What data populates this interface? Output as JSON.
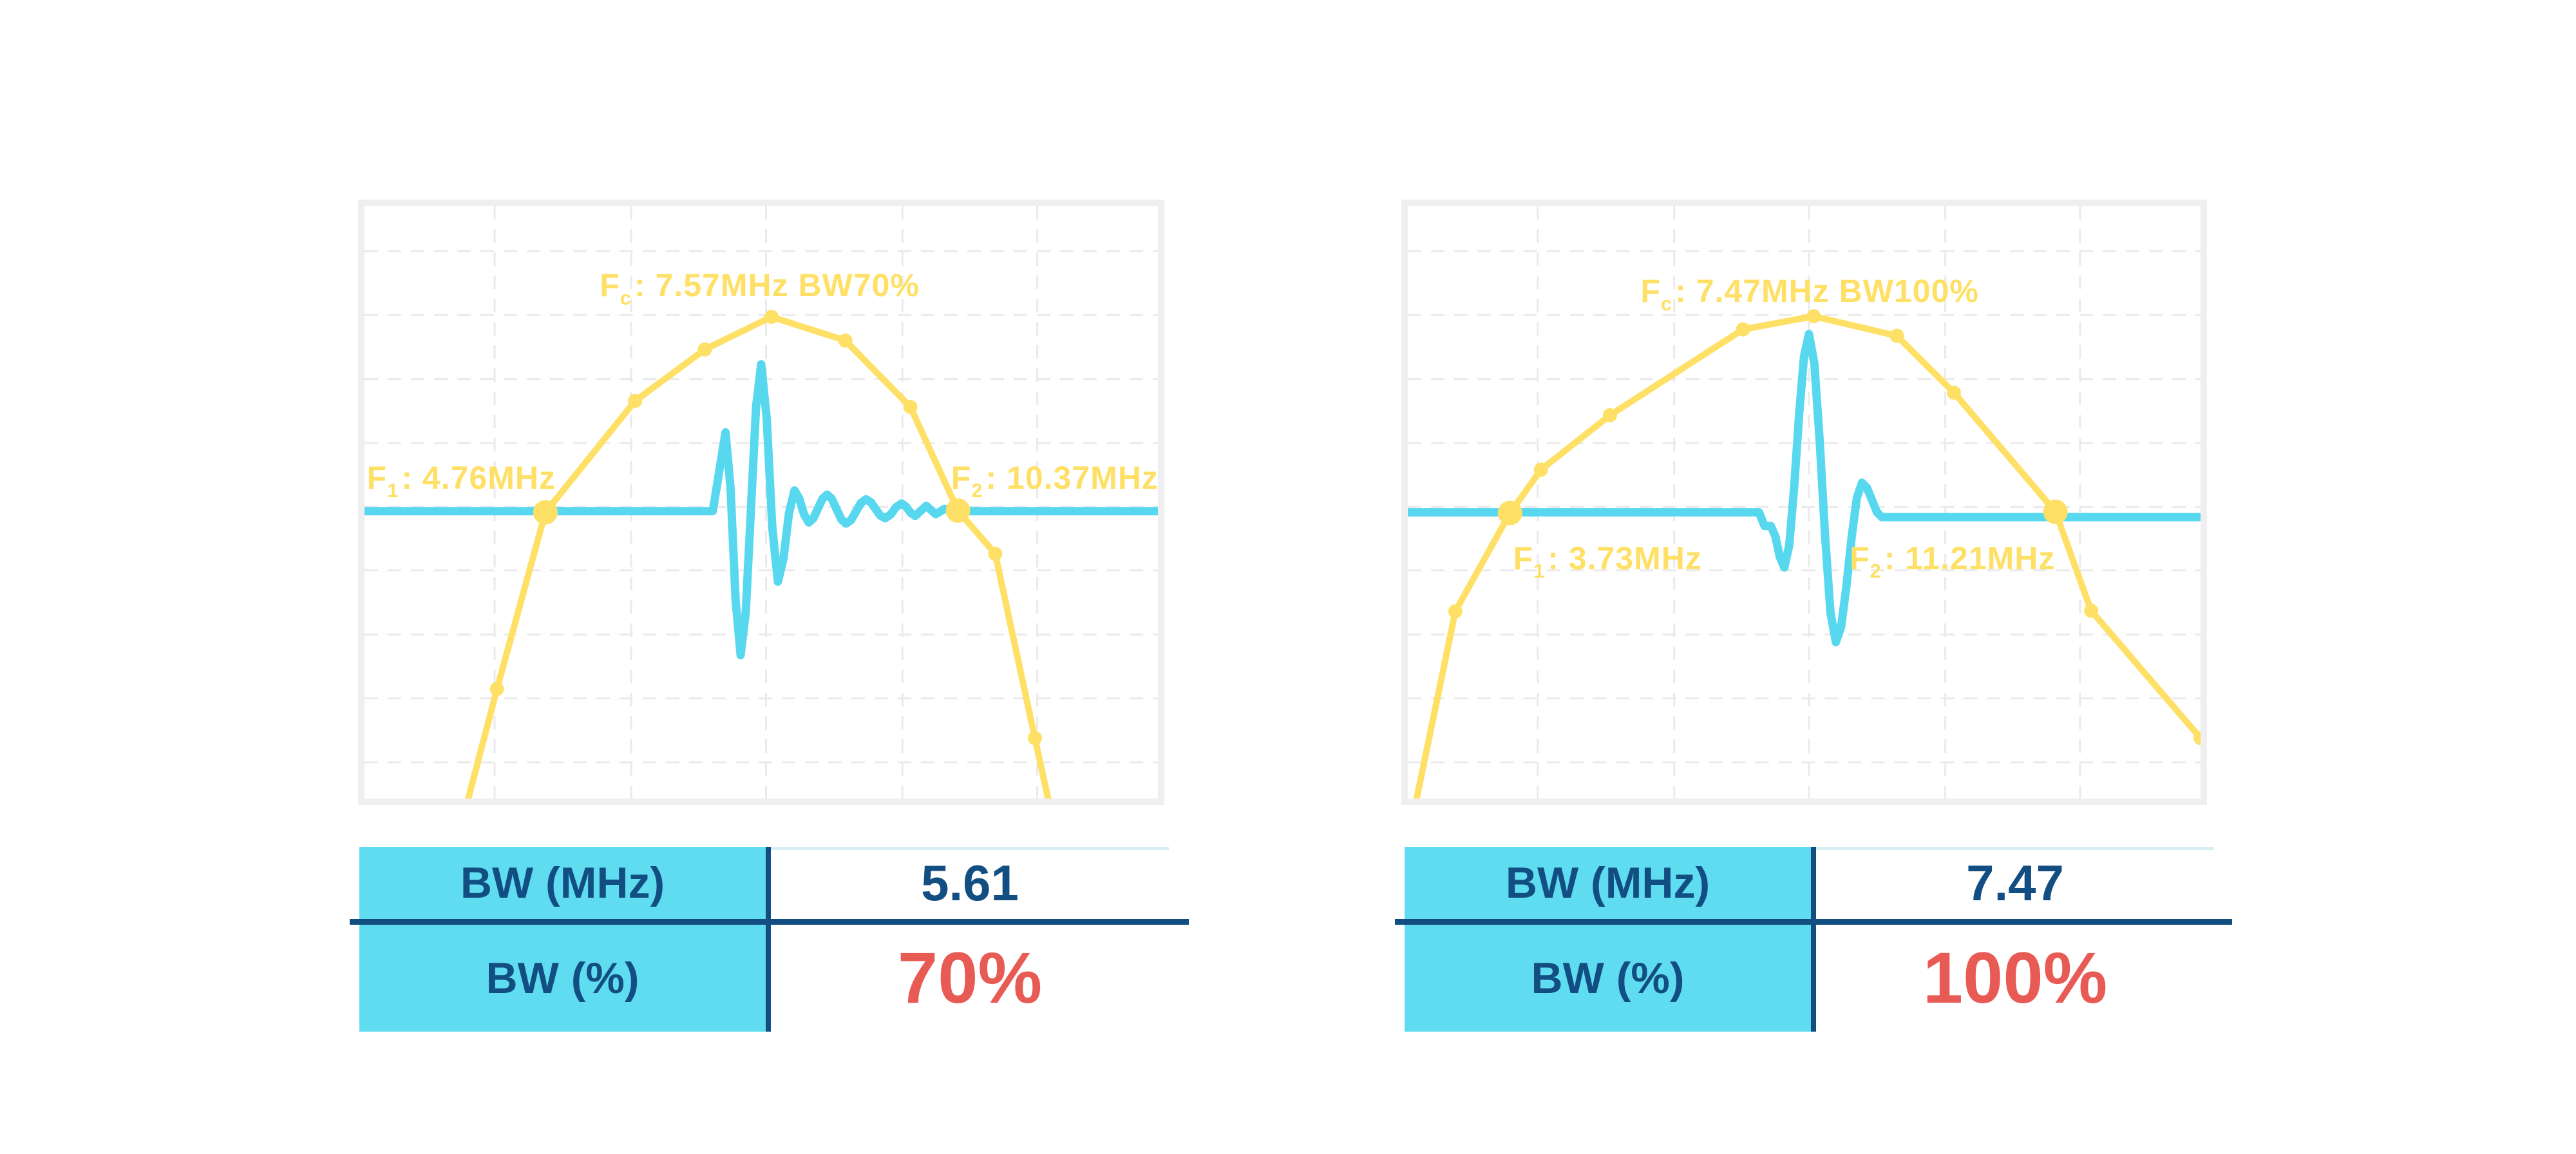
{
  "colors": {
    "yellow": "#FFE066",
    "cyan": "#58D8EF",
    "table_header_bg": "#5FDCF0",
    "navy": "#134E82",
    "red": "#E85B54",
    "frame_border": "#EFEFEF",
    "grid": "#EAEAEA",
    "light_rule": "#D7EEF4",
    "background": "#FFFFFF"
  },
  "chart_data": [
    {
      "type": "line",
      "description": "Pulse waveform (time) overlaid on frequency spectrum, 70% bandwidth transducer",
      "fc_mhz": 7.57,
      "f1_mhz": 4.76,
      "f2_mhz": 10.37,
      "bw_mhz": 5.61,
      "bw_percent": 70,
      "axes": "unlabeled",
      "grid_on": true,
      "annotations": {
        "fc": {
          "prefix": "F",
          "sub": "c",
          "rest": ": 7.57MHz BW70%",
          "x": 49.8,
          "y": 13.4
        },
        "f1": {
          "prefix": "F",
          "sub": "1",
          "rest": ": 4.76MHz",
          "x": 12.2,
          "y": 45.9
        },
        "f2": {
          "prefix": "F",
          "sub": "2",
          "rest": ": 10.37MHz",
          "x": 87.0,
          "y": 45.9
        }
      },
      "baseline_y": 0.515,
      "spectrum": [
        [
          0.123,
          1.04
        ],
        [
          0.167,
          0.815
        ],
        [
          0.228,
          0.517
        ],
        [
          0.341,
          0.329
        ],
        [
          0.429,
          0.242
        ],
        [
          0.513,
          0.187
        ],
        [
          0.606,
          0.227
        ],
        [
          0.688,
          0.339
        ],
        [
          0.748,
          0.514
        ],
        [
          0.795,
          0.587
        ],
        [
          0.845,
          0.898
        ],
        [
          0.868,
          1.04
        ]
      ],
      "markers_small": [
        [
          0.167,
          0.815
        ],
        [
          0.341,
          0.329
        ],
        [
          0.429,
          0.242
        ],
        [
          0.513,
          0.187
        ],
        [
          0.606,
          0.227
        ],
        [
          0.688,
          0.339
        ],
        [
          0.795,
          0.587
        ],
        [
          0.845,
          0.898
        ]
      ],
      "markers_large": [
        [
          0.228,
          0.517
        ],
        [
          0.748,
          0.514
        ]
      ],
      "pulse": [
        [
          0,
          0.515
        ],
        [
          0.439,
          0.515
        ],
        [
          0.455,
          0.382
        ],
        [
          0.474,
          0.758
        ],
        [
          0.5,
          0.267
        ],
        [
          0.521,
          0.634
        ],
        [
          0.542,
          0.48
        ],
        [
          0.56,
          0.534
        ],
        [
          0.583,
          0.487
        ],
        [
          0.607,
          0.536
        ],
        [
          0.632,
          0.495
        ],
        [
          0.656,
          0.527
        ],
        [
          0.677,
          0.502
        ],
        [
          0.694,
          0.523
        ],
        [
          0.708,
          0.506
        ],
        [
          0.72,
          0.52
        ],
        [
          0.731,
          0.511
        ],
        [
          0.745,
          0.515
        ],
        [
          1,
          0.515
        ]
      ],
      "grid": {
        "vx": [
          0.164,
          0.336,
          0.506,
          0.678,
          0.848
        ],
        "hy": [
          0.076,
          0.184,
          0.292,
          0.4,
          0.508,
          0.615,
          0.723,
          0.831,
          0.939
        ]
      },
      "table": {
        "rows": [
          {
            "label": "BW (MHz)",
            "value": "5.61",
            "emphasis": false
          },
          {
            "label": "BW (%)",
            "value": "70%",
            "emphasis": true
          }
        ]
      }
    },
    {
      "type": "line",
      "description": "Pulse waveform (time) overlaid on frequency spectrum, 100% bandwidth transducer",
      "fc_mhz": 7.47,
      "f1_mhz": 3.73,
      "f2_mhz": 11.21,
      "bw_mhz": 7.47,
      "bw_percent": 100,
      "axes": "unlabeled",
      "grid_on": true,
      "annotations": {
        "fc": {
          "prefix": "F",
          "sub": "c",
          "rest": ": 7.47MHz BW100%",
          "x": 50.7,
          "y": 14.3
        },
        "f1": {
          "prefix": "F",
          "sub": "1",
          "rest": ": 3.73MHz",
          "x": 25.2,
          "y": 59.5
        },
        "f2": {
          "prefix": "F",
          "sub": "2",
          "rest": ": 11.21MHz",
          "x": 68.7,
          "y": 59.5
        }
      },
      "baseline_y": 0.517,
      "spectrum": [
        [
          0.005,
          1.04
        ],
        [
          0.06,
          0.684
        ],
        [
          0.129,
          0.518
        ],
        [
          0.168,
          0.445
        ],
        [
          0.255,
          0.353
        ],
        [
          0.423,
          0.208
        ],
        [
          0.512,
          0.186
        ],
        [
          0.617,
          0.219
        ],
        [
          0.689,
          0.315
        ],
        [
          0.817,
          0.516
        ],
        [
          0.862,
          0.683
        ],
        [
          1.0,
          0.898
        ]
      ],
      "markers_small": [
        [
          0.06,
          0.684
        ],
        [
          0.168,
          0.445
        ],
        [
          0.255,
          0.353
        ],
        [
          0.423,
          0.208
        ],
        [
          0.512,
          0.186
        ],
        [
          0.617,
          0.219
        ],
        [
          0.689,
          0.315
        ],
        [
          0.862,
          0.683
        ],
        [
          1.0,
          0.898
        ]
      ],
      "markers_large": [
        [
          0.129,
          0.518
        ],
        [
          0.817,
          0.516
        ]
      ],
      "pulse": [
        [
          0,
          0.517
        ],
        [
          0.443,
          0.517
        ],
        [
          0.45,
          0.54
        ],
        [
          0.458,
          0.54
        ],
        [
          0.475,
          0.61
        ],
        [
          0.506,
          0.216
        ],
        [
          0.54,
          0.736
        ],
        [
          0.573,
          0.467
        ],
        [
          0.598,
          0.525
        ],
        [
          1,
          0.525
        ]
      ],
      "grid": {
        "vx": [
          0.164,
          0.336,
          0.506,
          0.678,
          0.848
        ],
        "hy": [
          0.076,
          0.184,
          0.292,
          0.4,
          0.508,
          0.615,
          0.723,
          0.831,
          0.939
        ]
      },
      "table": {
        "rows": [
          {
            "label": "BW (MHz)",
            "value": "7.47",
            "emphasis": false
          },
          {
            "label": "BW (%)",
            "value": "100%",
            "emphasis": true
          }
        ]
      }
    }
  ]
}
